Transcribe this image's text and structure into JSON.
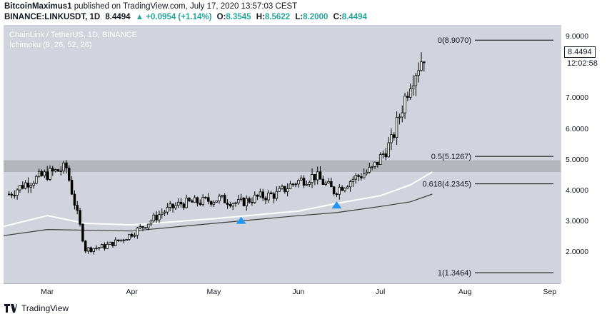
{
  "header": {
    "author": "BitcoinMaximus1",
    "published_text": "published on TradingView.com, July 17, 2020 13:57:03 CEST",
    "symbol": "BINANCE:LINKUSDT, 1D",
    "last": "8.4494",
    "change": "▲ +0.0954 (+1.14%)",
    "o_label": "O:",
    "o_value": "8.3545",
    "h_label": "H:",
    "h_value": "8.5622",
    "l_label": "L:",
    "l_value": "8.2000",
    "c_label": "C:",
    "c_value": "8.4494"
  },
  "chart_title": "ChainLink / TetherUS, 1D, BINANCE",
  "indicator_label": "Ichimoku (9, 26, 52, 26)",
  "price_tag": "8.4494",
  "countdown": "12:02:58",
  "footer": {
    "brand": "TradingView"
  },
  "colors": {
    "background": "#d1d4dc",
    "up_candle": "#ffffff",
    "down_candle": "#000000",
    "support_zone": "#b4b6bc",
    "baseline_light": "#ffffff",
    "baseline_dark": "#3c3c3c",
    "arrow": "#2196f3"
  },
  "chart_data": {
    "type": "candlestick",
    "title": "ChainLink / TetherUS, 1D, BINANCE",
    "ylim": [
      1.0,
      9.4
    ],
    "y_ticks": [
      "2.0000",
      "3.0000",
      "4.0000",
      "5.0000",
      "6.0000",
      "7.0000",
      "9.0000"
    ],
    "x_ticks": [
      "Mar",
      "Apr",
      "May",
      "Jun",
      "Jul",
      "Aug",
      "Sep"
    ],
    "x_tick_dates": [
      "2020-03-01",
      "2020-04-01",
      "2020-05-01",
      "2020-06-01",
      "2020-07-01",
      "2020-08-01",
      "2020-09-01"
    ],
    "xlim": [
      "2020-02-14",
      "2020-09-05"
    ],
    "support_zone": [
      4.62,
      5.0
    ],
    "fib_levels": [
      {
        "label": "0(8.9070)",
        "value": 8.907
      },
      {
        "label": "0.5(5.1267)",
        "value": 5.1267
      },
      {
        "label": "0.618(4.2345)",
        "value": 4.2345
      },
      {
        "label": "1(1.3464)",
        "value": 1.3464
      }
    ],
    "candles_weekly_close": [
      {
        "date": "2020-02-16",
        "close": 3.9
      },
      {
        "date": "2020-02-23",
        "close": 4.3
      },
      {
        "date": "2020-03-01",
        "close": 4.55
      },
      {
        "date": "2020-03-08",
        "close": 4.75
      },
      {
        "date": "2020-03-15",
        "close": 2.1
      },
      {
        "date": "2020-03-22",
        "close": 2.2
      },
      {
        "date": "2020-03-29",
        "close": 2.45
      },
      {
        "date": "2020-04-05",
        "close": 2.85
      },
      {
        "date": "2020-04-12",
        "close": 3.3
      },
      {
        "date": "2020-04-19",
        "close": 3.6
      },
      {
        "date": "2020-04-26",
        "close": 3.65
      },
      {
        "date": "2020-05-03",
        "close": 3.75
      },
      {
        "date": "2020-05-10",
        "close": 3.6
      },
      {
        "date": "2020-05-17",
        "close": 3.8
      },
      {
        "date": "2020-05-24",
        "close": 3.9
      },
      {
        "date": "2020-05-31",
        "close": 4.3
      },
      {
        "date": "2020-06-07",
        "close": 4.5
      },
      {
        "date": "2020-06-14",
        "close": 4.0
      },
      {
        "date": "2020-06-21",
        "close": 4.4
      },
      {
        "date": "2020-06-28",
        "close": 4.7
      },
      {
        "date": "2020-07-05",
        "close": 5.6
      },
      {
        "date": "2020-07-12",
        "close": 7.6
      },
      {
        "date": "2020-07-17",
        "close": 8.4494
      }
    ],
    "baseline_light": [
      {
        "date": "2020-02-14",
        "value": 2.85
      },
      {
        "date": "2020-03-01",
        "value": 3.2
      },
      {
        "date": "2020-03-15",
        "value": 2.95
      },
      {
        "date": "2020-04-01",
        "value": 2.9
      },
      {
        "date": "2020-05-01",
        "value": 3.1
      },
      {
        "date": "2020-06-01",
        "value": 3.35
      },
      {
        "date": "2020-06-15",
        "value": 3.6
      },
      {
        "date": "2020-07-01",
        "value": 3.85
      },
      {
        "date": "2020-07-12",
        "value": 4.2
      },
      {
        "date": "2020-07-20",
        "value": 4.62
      }
    ],
    "baseline_dark": [
      {
        "date": "2020-02-14",
        "value": 2.55
      },
      {
        "date": "2020-03-01",
        "value": 2.75
      },
      {
        "date": "2020-04-01",
        "value": 2.7
      },
      {
        "date": "2020-05-01",
        "value": 2.95
      },
      {
        "date": "2020-06-01",
        "value": 3.2
      },
      {
        "date": "2020-06-15",
        "value": 3.3
      },
      {
        "date": "2020-07-01",
        "value": 3.5
      },
      {
        "date": "2020-07-12",
        "value": 3.65
      },
      {
        "date": "2020-07-20",
        "value": 3.9
      }
    ],
    "markers": [
      {
        "date": "2020-05-11",
        "value": 3.05,
        "shape": "triangle-up"
      },
      {
        "date": "2020-06-15",
        "value": 3.55,
        "shape": "triangle-up"
      }
    ]
  }
}
